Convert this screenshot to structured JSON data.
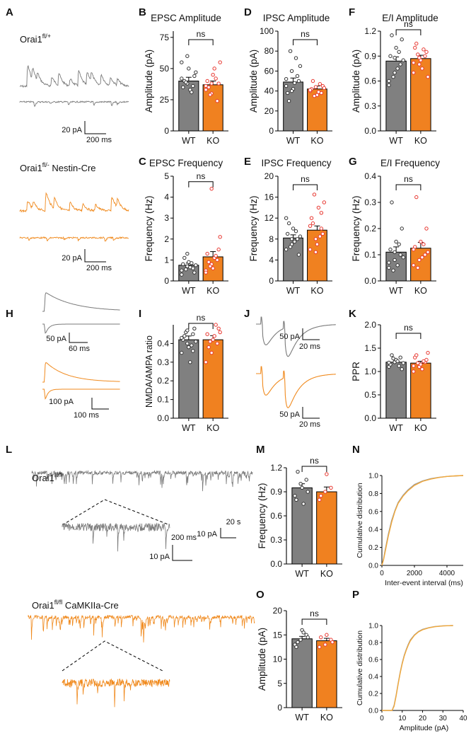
{
  "colors": {
    "wt": "#808080",
    "ko": "#f08120",
    "ko_dot": "#e8362f",
    "trace_wt": "#7a7a7a",
    "trace_ko": "#f08a1e",
    "edge": "#000000"
  },
  "panel_labels": {
    "A": "A",
    "B": "B",
    "C": "C",
    "D": "D",
    "E": "E",
    "F": "F",
    "G": "G",
    "H": "H",
    "I": "I",
    "J": "J",
    "K": "K",
    "L": "L",
    "M": "M",
    "N": "N",
    "O": "O",
    "P": "P"
  },
  "traces": {
    "A": {
      "label_wt_base": "Orai1",
      "label_wt_sup": "fl/+",
      "label_ko_base": "Orai1",
      "label_ko_sup": "fl/-",
      "label_ko_suffix": " Nestin-Cre",
      "scale_wt_y": "20 pA",
      "scale_wt_x": "200 ms",
      "scale_ko_y": "20 pA",
      "scale_ko_x": "200 ms"
    },
    "H": {
      "scale_wt_y": "50 pA",
      "scale_wt_x": "60 ms",
      "scale_ko_y": "100 pA",
      "scale_ko_x": "100 ms"
    },
    "J": {
      "scale_wt_y": "50 pA",
      "scale_wt_x": "20 ms",
      "scale_ko_y": "50 pA",
      "scale_ko_x": "20 ms"
    },
    "L": {
      "label_wt_base": "Orai1",
      "label_wt_sup": "fl/fl",
      "label_ko_base": "Orai1",
      "label_ko_sup": "fl/fl",
      "label_ko_suffix": " CaMKIIa-Cre",
      "scale_long_y": "10 pA",
      "scale_long_x": "20 s",
      "scale_zoom_y": "10 pA",
      "scale_zoom_x": "200 ms"
    }
  },
  "chart_data": [
    {
      "panel": "B",
      "type": "bar",
      "title": "EPSC Amplitude",
      "ylabel": "Amplitude (pA)",
      "categories": [
        "WT",
        "KO"
      ],
      "values": [
        40,
        37
      ],
      "sem": [
        3,
        3
      ],
      "ylim": [
        0,
        80
      ],
      "yticks": [
        0,
        25,
        50,
        75
      ],
      "sig": "ns",
      "points": [
        [
          42,
          38,
          36,
          35,
          50,
          44,
          40,
          33,
          47,
          39,
          31,
          55,
          60
        ],
        [
          36,
          30,
          24,
          40,
          45,
          38,
          35,
          50,
          55,
          29,
          42,
          33,
          38
        ]
      ]
    },
    {
      "panel": "C",
      "type": "bar",
      "title": "EPSC Frequency",
      "ylabel": "Frequency (Hz)",
      "categories": [
        "WT",
        "KO"
      ],
      "values": [
        0.75,
        1.15
      ],
      "sem": [
        0.1,
        0.25
      ],
      "ylim": [
        0,
        5
      ],
      "yticks": [
        0,
        1,
        2,
        3,
        4,
        5
      ],
      "sig": "ns",
      "points": [
        [
          0.5,
          0.7,
          0.6,
          0.8,
          0.9,
          0.4,
          1.1,
          0.65,
          0.75,
          0.55,
          0.85,
          0.3,
          1.3
        ],
        [
          0.5,
          0.8,
          1.0,
          1.3,
          0.6,
          1.5,
          0.9,
          1.1,
          2.1,
          0.7,
          1.2,
          0.4,
          4.4
        ]
      ]
    },
    {
      "panel": "D",
      "type": "bar",
      "title": "IPSC Amplitude",
      "ylabel": "Amplitude (pA)",
      "categories": [
        "WT",
        "KO"
      ],
      "values": [
        49,
        42
      ],
      "sem": [
        4,
        3
      ],
      "ylim": [
        0,
        100
      ],
      "yticks": [
        0,
        20,
        40,
        60,
        80,
        100
      ],
      "sig": "ns",
      "points": [
        [
          45,
          60,
          55,
          38,
          42,
          50,
          30,
          48,
          65,
          80,
          73,
          52,
          40
        ],
        [
          40,
          44,
          38,
          42,
          36,
          45,
          50,
          39,
          43,
          35,
          47,
          41
        ]
      ]
    },
    {
      "panel": "E",
      "type": "bar",
      "title": "IPSC Frequency",
      "ylabel": "Frequency (Hz)",
      "categories": [
        "WT",
        "KO"
      ],
      "values": [
        8.2,
        9.7
      ],
      "sem": [
        0.6,
        0.8
      ],
      "ylim": [
        0,
        20
      ],
      "yticks": [
        0,
        4,
        8,
        12,
        16,
        20
      ],
      "sig": "ns",
      "points": [
        [
          6,
          7,
          8,
          9,
          10,
          5,
          11,
          7.5,
          8.5,
          6.5,
          9.5,
          12,
          8
        ],
        [
          6,
          8,
          10,
          12,
          7,
          9,
          11,
          14,
          15,
          16.5,
          8.5,
          10.5,
          5.5,
          13
        ]
      ]
    },
    {
      "panel": "F",
      "type": "bar",
      "title": "E/I Amplitude",
      "ylabel": "Amplitude (pA)",
      "categories": [
        "WT",
        "KO"
      ],
      "values": [
        0.84,
        0.87
      ],
      "sem": [
        0.05,
        0.04
      ],
      "ylim": [
        0,
        1.2
      ],
      "yticks": [
        0,
        0.3,
        0.6,
        0.9,
        1.2
      ],
      "sig": "ns",
      "points": [
        [
          0.6,
          0.7,
          0.8,
          0.9,
          1.0,
          1.1,
          1.15,
          0.75,
          0.85,
          0.65,
          0.95,
          0.55,
          0.88
        ],
        [
          0.7,
          0.8,
          0.9,
          1.0,
          0.85,
          0.95,
          1.05,
          0.75,
          0.65,
          0.92,
          0.98,
          0.82,
          0.88
        ]
      ]
    },
    {
      "panel": "G",
      "type": "bar",
      "title": "E/I Frequency",
      "ylabel": "Frequency (Hz)",
      "categories": [
        "WT",
        "KO"
      ],
      "values": [
        0.11,
        0.125
      ],
      "sem": [
        0.02,
        0.022
      ],
      "ylim": [
        0,
        0.4
      ],
      "yticks": [
        0,
        0.1,
        0.2,
        0.3,
        0.4
      ],
      "sig": "ns",
      "points": [
        [
          0.05,
          0.08,
          0.1,
          0.12,
          0.15,
          0.2,
          0.3,
          0.06,
          0.09,
          0.04,
          0.14,
          0.07,
          0.11
        ],
        [
          0.06,
          0.08,
          0.1,
          0.13,
          0.15,
          0.2,
          0.32,
          0.09,
          0.11,
          0.05,
          0.14,
          0.12
        ]
      ]
    },
    {
      "panel": "I",
      "type": "bar",
      "title": "",
      "ylabel": "NMDA/AMPA ratio",
      "categories": [
        "WT",
        "KO"
      ],
      "values": [
        0.42,
        0.42
      ],
      "sem": [
        0.02,
        0.022
      ],
      "ylim": [
        0,
        0.5
      ],
      "yticks": [
        0,
        0.1,
        0.2,
        0.3,
        0.4
      ],
      "sig": "ns",
      "points": [
        [
          0.35,
          0.4,
          0.45,
          0.42,
          0.38,
          0.48,
          0.44,
          0.3,
          0.41,
          0.46,
          0.39,
          0.43,
          0.47,
          0.36
        ],
        [
          0.3,
          0.35,
          0.4,
          0.45,
          0.42,
          0.48,
          0.38,
          0.44,
          0.46,
          0.41,
          0.5
        ]
      ]
    },
    {
      "panel": "K",
      "type": "bar",
      "title": "",
      "ylabel": "PPR",
      "categories": [
        "WT",
        "KO"
      ],
      "values": [
        1.2,
        1.18
      ],
      "sem": [
        0.03,
        0.04
      ],
      "ylim": [
        0,
        2.0
      ],
      "yticks": [
        0,
        0.5,
        1.0,
        1.5,
        2.0
      ],
      "sig": "ns",
      "points": [
        [
          1.1,
          1.2,
          1.3,
          1.15,
          1.25,
          1.05,
          1.35,
          1.22,
          1.18,
          1.28,
          1.12,
          1.19
        ],
        [
          1.0,
          1.1,
          1.2,
          1.3,
          1.15,
          1.25,
          1.35,
          1.05,
          1.4,
          1.18,
          1.22,
          1.12
        ]
      ]
    },
    {
      "panel": "M",
      "type": "bar",
      "title": "",
      "ylabel": "Frequency (Hz)",
      "categories": [
        "WT",
        "KO"
      ],
      "values": [
        0.95,
        0.9
      ],
      "sem": [
        0.05,
        0.06
      ],
      "ylim": [
        0,
        1.2
      ],
      "yticks": [
        0,
        0.3,
        0.6,
        0.9,
        1.2
      ],
      "sig": "ns",
      "points": [
        [
          0.85,
          1.0,
          1.05,
          0.8,
          0.95,
          0.9,
          1.15,
          0.75
        ],
        [
          0.8,
          0.9,
          0.95,
          0.85,
          1.12
        ]
      ]
    },
    {
      "panel": "O",
      "type": "bar",
      "title": "",
      "ylabel": "Amplitude (pA)",
      "categories": [
        "WT",
        "KO"
      ],
      "values": [
        14.2,
        13.8
      ],
      "sem": [
        0.5,
        0.5
      ],
      "ylim": [
        0,
        20
      ],
      "yticks": [
        0,
        5,
        10,
        15,
        20
      ],
      "sig": "ns",
      "points": [
        [
          13,
          14,
          15,
          12.5,
          16,
          14.5,
          13.5,
          15.5
        ],
        [
          12.5,
          13,
          14,
          14.5,
          15,
          13.5
        ]
      ]
    },
    {
      "panel": "N",
      "type": "line",
      "xlabel": "Inter-event interval (ms)",
      "ylabel": "Cumulative distribution",
      "xlim": [
        0,
        5000
      ],
      "ylim": [
        0,
        1.0
      ],
      "xticks": [
        0,
        2000,
        4000
      ],
      "yticks": [
        0,
        0.2,
        0.4,
        0.6,
        0.8,
        1.0
      ],
      "series": [
        {
          "name": "WT",
          "x": [
            0,
            100,
            200,
            400,
            600,
            800,
            1000,
            1300,
            1600,
            2000,
            2500,
            3000,
            3500,
            4000,
            4500,
            5000
          ],
          "y": [
            0,
            0.07,
            0.17,
            0.35,
            0.5,
            0.61,
            0.7,
            0.78,
            0.84,
            0.9,
            0.94,
            0.965,
            0.98,
            0.99,
            0.995,
            1.0
          ]
        },
        {
          "name": "KO",
          "x": [
            0,
            100,
            200,
            400,
            600,
            800,
            1000,
            1300,
            1600,
            2000,
            2500,
            3000,
            3500,
            4000,
            4500,
            5000
          ],
          "y": [
            0,
            0.06,
            0.15,
            0.33,
            0.48,
            0.6,
            0.69,
            0.77,
            0.83,
            0.89,
            0.935,
            0.96,
            0.978,
            0.99,
            0.996,
            1.0
          ]
        }
      ]
    },
    {
      "panel": "P",
      "type": "line",
      "xlabel": "Amplitude (pA)",
      "ylabel": "Cumulative distribution",
      "xlim": [
        0,
        40
      ],
      "ylim": [
        0,
        1.0
      ],
      "xticks": [
        0,
        10,
        20,
        30,
        40
      ],
      "yticks": [
        0,
        0.2,
        0.4,
        0.6,
        0.8,
        1.0
      ],
      "series": [
        {
          "name": "WT",
          "x": [
            0,
            5,
            6,
            7,
            8,
            9,
            10,
            11,
            12,
            13,
            14,
            16,
            18,
            20,
            23,
            26,
            30,
            35
          ],
          "y": [
            0,
            0,
            0.06,
            0.18,
            0.32,
            0.45,
            0.56,
            0.65,
            0.72,
            0.78,
            0.83,
            0.89,
            0.93,
            0.955,
            0.975,
            0.988,
            0.996,
            1.0
          ]
        },
        {
          "name": "KO",
          "x": [
            0,
            5,
            6,
            7,
            8,
            9,
            10,
            11,
            12,
            13,
            14,
            16,
            18,
            20,
            23,
            26,
            30,
            35
          ],
          "y": [
            0,
            0,
            0.05,
            0.17,
            0.31,
            0.44,
            0.55,
            0.64,
            0.71,
            0.77,
            0.82,
            0.885,
            0.925,
            0.95,
            0.972,
            0.986,
            0.995,
            1.0
          ]
        }
      ]
    }
  ]
}
